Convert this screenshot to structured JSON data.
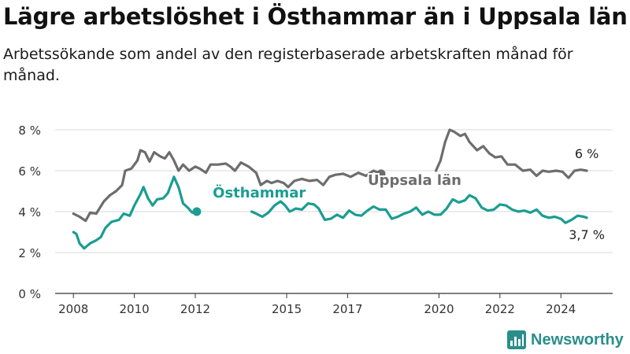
{
  "title": "Lägre arbetslöshet i Östhammar än i Uppsala län",
  "subtitle": "Arbetssökande som andel av den registerbaserade arbetskraften månad för månad.",
  "logo_text": "Newsworthy",
  "chart_data": {
    "type": "line",
    "ylim": [
      0,
      8
    ],
    "yticks": [
      0,
      2,
      4,
      6,
      8
    ],
    "ytick_labels": [
      "0 %",
      "2 %",
      "4 %",
      "6 %",
      "8 %"
    ],
    "xlim": [
      2007.4,
      2025.7
    ],
    "xticks": [
      2008,
      2010,
      2012,
      2015,
      2017,
      2020,
      2022,
      2024
    ],
    "xtick_labels": [
      "2008",
      "2010",
      "2012",
      "2015",
      "2017",
      "2020",
      "2022",
      "2024"
    ],
    "grid": true,
    "series": [
      {
        "name": "Uppsala län",
        "color": "#6d6d6d",
        "end_label": "6 %",
        "points": [
          [
            2008.0,
            3.9
          ],
          [
            2008.2,
            3.75
          ],
          [
            2008.4,
            3.55
          ],
          [
            2008.55,
            3.95
          ],
          [
            2008.75,
            3.9
          ],
          [
            2009.0,
            4.5
          ],
          [
            2009.2,
            4.8
          ],
          [
            2009.4,
            5.0
          ],
          [
            2009.6,
            5.3
          ],
          [
            2009.7,
            6.0
          ],
          [
            2009.9,
            6.1
          ],
          [
            2010.1,
            6.5
          ],
          [
            2010.2,
            7.0
          ],
          [
            2010.35,
            6.9
          ],
          [
            2010.5,
            6.45
          ],
          [
            2010.65,
            6.9
          ],
          [
            2010.85,
            6.7
          ],
          [
            2011.0,
            6.6
          ],
          [
            2011.15,
            6.9
          ],
          [
            2011.3,
            6.5
          ],
          [
            2011.45,
            6.0
          ],
          [
            2011.6,
            6.3
          ],
          [
            2011.8,
            6.0
          ],
          [
            2012.0,
            6.2
          ],
          [
            2012.15,
            6.1
          ],
          [
            2012.35,
            5.9
          ],
          [
            2012.5,
            6.3
          ],
          [
            2012.75,
            6.3
          ],
          [
            2013.0,
            6.35
          ],
          [
            2013.15,
            6.2
          ],
          [
            2013.3,
            6.0
          ],
          [
            2013.5,
            6.4
          ],
          [
            2013.75,
            6.2
          ],
          [
            2014.0,
            5.9
          ],
          [
            2014.15,
            5.3
          ],
          [
            2014.35,
            5.5
          ],
          [
            2014.5,
            5.4
          ],
          [
            2014.7,
            5.5
          ],
          [
            2014.9,
            5.4
          ],
          [
            2015.05,
            5.2
          ],
          [
            2015.25,
            5.5
          ],
          [
            2015.5,
            5.6
          ],
          [
            2015.75,
            5.5
          ],
          [
            2016.0,
            5.55
          ],
          [
            2016.2,
            5.3
          ],
          [
            2016.4,
            5.7
          ],
          [
            2016.6,
            5.8
          ],
          [
            2016.85,
            5.85
          ],
          [
            2017.1,
            5.7
          ],
          [
            2017.35,
            5.9
          ],
          [
            2017.6,
            5.75
          ],
          [
            2017.85,
            6.0
          ],
          [
            2018.1,
            5.85
          ]
        ]
      },
      {
        "name": "Uppsala län",
        "color": "#6d6d6d",
        "points": [
          [
            2019.9,
            6.0
          ],
          [
            2020.05,
            6.5
          ],
          [
            2020.2,
            7.4
          ],
          [
            2020.35,
            8.0
          ],
          [
            2020.5,
            7.9
          ],
          [
            2020.7,
            7.7
          ],
          [
            2020.85,
            7.8
          ],
          [
            2021.0,
            7.4
          ],
          [
            2021.25,
            7.0
          ],
          [
            2021.45,
            7.2
          ],
          [
            2021.65,
            6.85
          ],
          [
            2021.85,
            6.65
          ],
          [
            2022.05,
            6.7
          ],
          [
            2022.25,
            6.3
          ],
          [
            2022.5,
            6.3
          ],
          [
            2022.75,
            6.0
          ],
          [
            2023.0,
            6.05
          ],
          [
            2023.2,
            5.75
          ],
          [
            2023.4,
            6.0
          ],
          [
            2023.6,
            5.95
          ],
          [
            2023.85,
            6.0
          ],
          [
            2024.05,
            5.95
          ],
          [
            2024.25,
            5.65
          ],
          [
            2024.45,
            6.0
          ],
          [
            2024.65,
            6.05
          ],
          [
            2024.85,
            6.0
          ]
        ]
      },
      {
        "name": "Östhammar",
        "color": "#1a9d92",
        "end_label": "3,7 %",
        "points": [
          [
            2008.0,
            3.0
          ],
          [
            2008.1,
            2.9
          ],
          [
            2008.2,
            2.45
          ],
          [
            2008.35,
            2.2
          ],
          [
            2008.55,
            2.45
          ],
          [
            2008.75,
            2.6
          ],
          [
            2008.9,
            2.75
          ],
          [
            2009.05,
            3.2
          ],
          [
            2009.25,
            3.5
          ],
          [
            2009.5,
            3.6
          ],
          [
            2009.65,
            3.9
          ],
          [
            2009.85,
            3.8
          ],
          [
            2010.0,
            4.3
          ],
          [
            2010.2,
            4.85
          ],
          [
            2010.3,
            5.2
          ],
          [
            2010.45,
            4.65
          ],
          [
            2010.6,
            4.3
          ],
          [
            2010.75,
            4.6
          ],
          [
            2010.95,
            4.65
          ],
          [
            2011.1,
            4.9
          ],
          [
            2011.3,
            5.7
          ],
          [
            2011.45,
            5.2
          ],
          [
            2011.6,
            4.4
          ],
          [
            2011.75,
            4.2
          ],
          [
            2011.9,
            3.95
          ],
          [
            2012.05,
            4.0
          ]
        ]
      },
      {
        "name": "Östhammar",
        "color": "#1a9d92",
        "points": [
          [
            2013.85,
            4.0
          ],
          [
            2014.0,
            3.9
          ],
          [
            2014.2,
            3.75
          ],
          [
            2014.4,
            3.95
          ],
          [
            2014.6,
            4.3
          ],
          [
            2014.8,
            4.5
          ],
          [
            2014.95,
            4.3
          ],
          [
            2015.1,
            4.0
          ],
          [
            2015.3,
            4.15
          ],
          [
            2015.5,
            4.1
          ],
          [
            2015.7,
            4.4
          ],
          [
            2015.9,
            4.35
          ],
          [
            2016.05,
            4.15
          ],
          [
            2016.25,
            3.6
          ],
          [
            2016.45,
            3.65
          ],
          [
            2016.65,
            3.85
          ],
          [
            2016.85,
            3.7
          ],
          [
            2017.05,
            4.05
          ],
          [
            2017.25,
            3.85
          ],
          [
            2017.45,
            3.8
          ],
          [
            2017.65,
            4.05
          ],
          [
            2017.85,
            4.25
          ],
          [
            2018.05,
            4.1
          ],
          [
            2018.25,
            4.1
          ],
          [
            2018.45,
            3.65
          ],
          [
            2018.65,
            3.75
          ],
          [
            2018.85,
            3.9
          ],
          [
            2019.05,
            4.0
          ],
          [
            2019.25,
            4.2
          ],
          [
            2019.45,
            3.85
          ],
          [
            2019.65,
            4.0
          ],
          [
            2019.85,
            3.85
          ],
          [
            2020.05,
            3.85
          ],
          [
            2020.25,
            4.15
          ],
          [
            2020.45,
            4.6
          ],
          [
            2020.65,
            4.45
          ],
          [
            2020.85,
            4.55
          ],
          [
            2021.0,
            4.8
          ],
          [
            2021.2,
            4.65
          ],
          [
            2021.4,
            4.2
          ],
          [
            2021.6,
            4.05
          ],
          [
            2021.8,
            4.1
          ],
          [
            2022.0,
            4.35
          ],
          [
            2022.2,
            4.3
          ],
          [
            2022.4,
            4.1
          ],
          [
            2022.6,
            4.0
          ],
          [
            2022.8,
            4.05
          ],
          [
            2023.0,
            3.95
          ],
          [
            2023.2,
            4.1
          ],
          [
            2023.4,
            3.8
          ],
          [
            2023.6,
            3.7
          ],
          [
            2023.8,
            3.75
          ],
          [
            2024.0,
            3.65
          ],
          [
            2024.15,
            3.45
          ],
          [
            2024.35,
            3.6
          ],
          [
            2024.55,
            3.8
          ],
          [
            2024.75,
            3.75
          ],
          [
            2024.85,
            3.7
          ]
        ]
      }
    ],
    "annotations": [
      {
        "text": "Uppsala län",
        "x": 2019.2,
        "y": 5.3,
        "color": "#6d6d6d"
      },
      {
        "text": "Östhammar",
        "x": 2014.1,
        "y": 4.7,
        "color": "#1a9d92"
      }
    ]
  }
}
